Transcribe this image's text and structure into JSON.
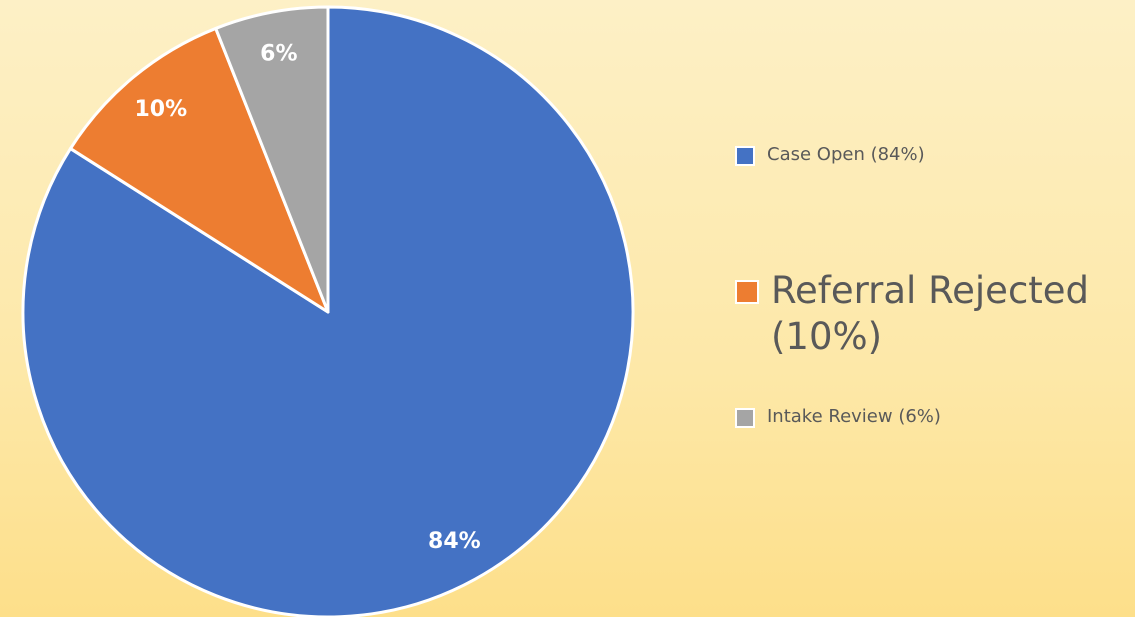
{
  "chart_data": {
    "type": "pie",
    "categories": [
      "Case Open (84%)",
      "Referral Rejected (10%)",
      "Intake Review (6%)"
    ],
    "values": [
      84,
      10,
      6
    ],
    "value_labels": [
      "84%",
      "10%",
      "6%"
    ],
    "colors": [
      "#4472c4",
      "#ed7d31",
      "#a5a5a5"
    ],
    "legend": "right"
  }
}
